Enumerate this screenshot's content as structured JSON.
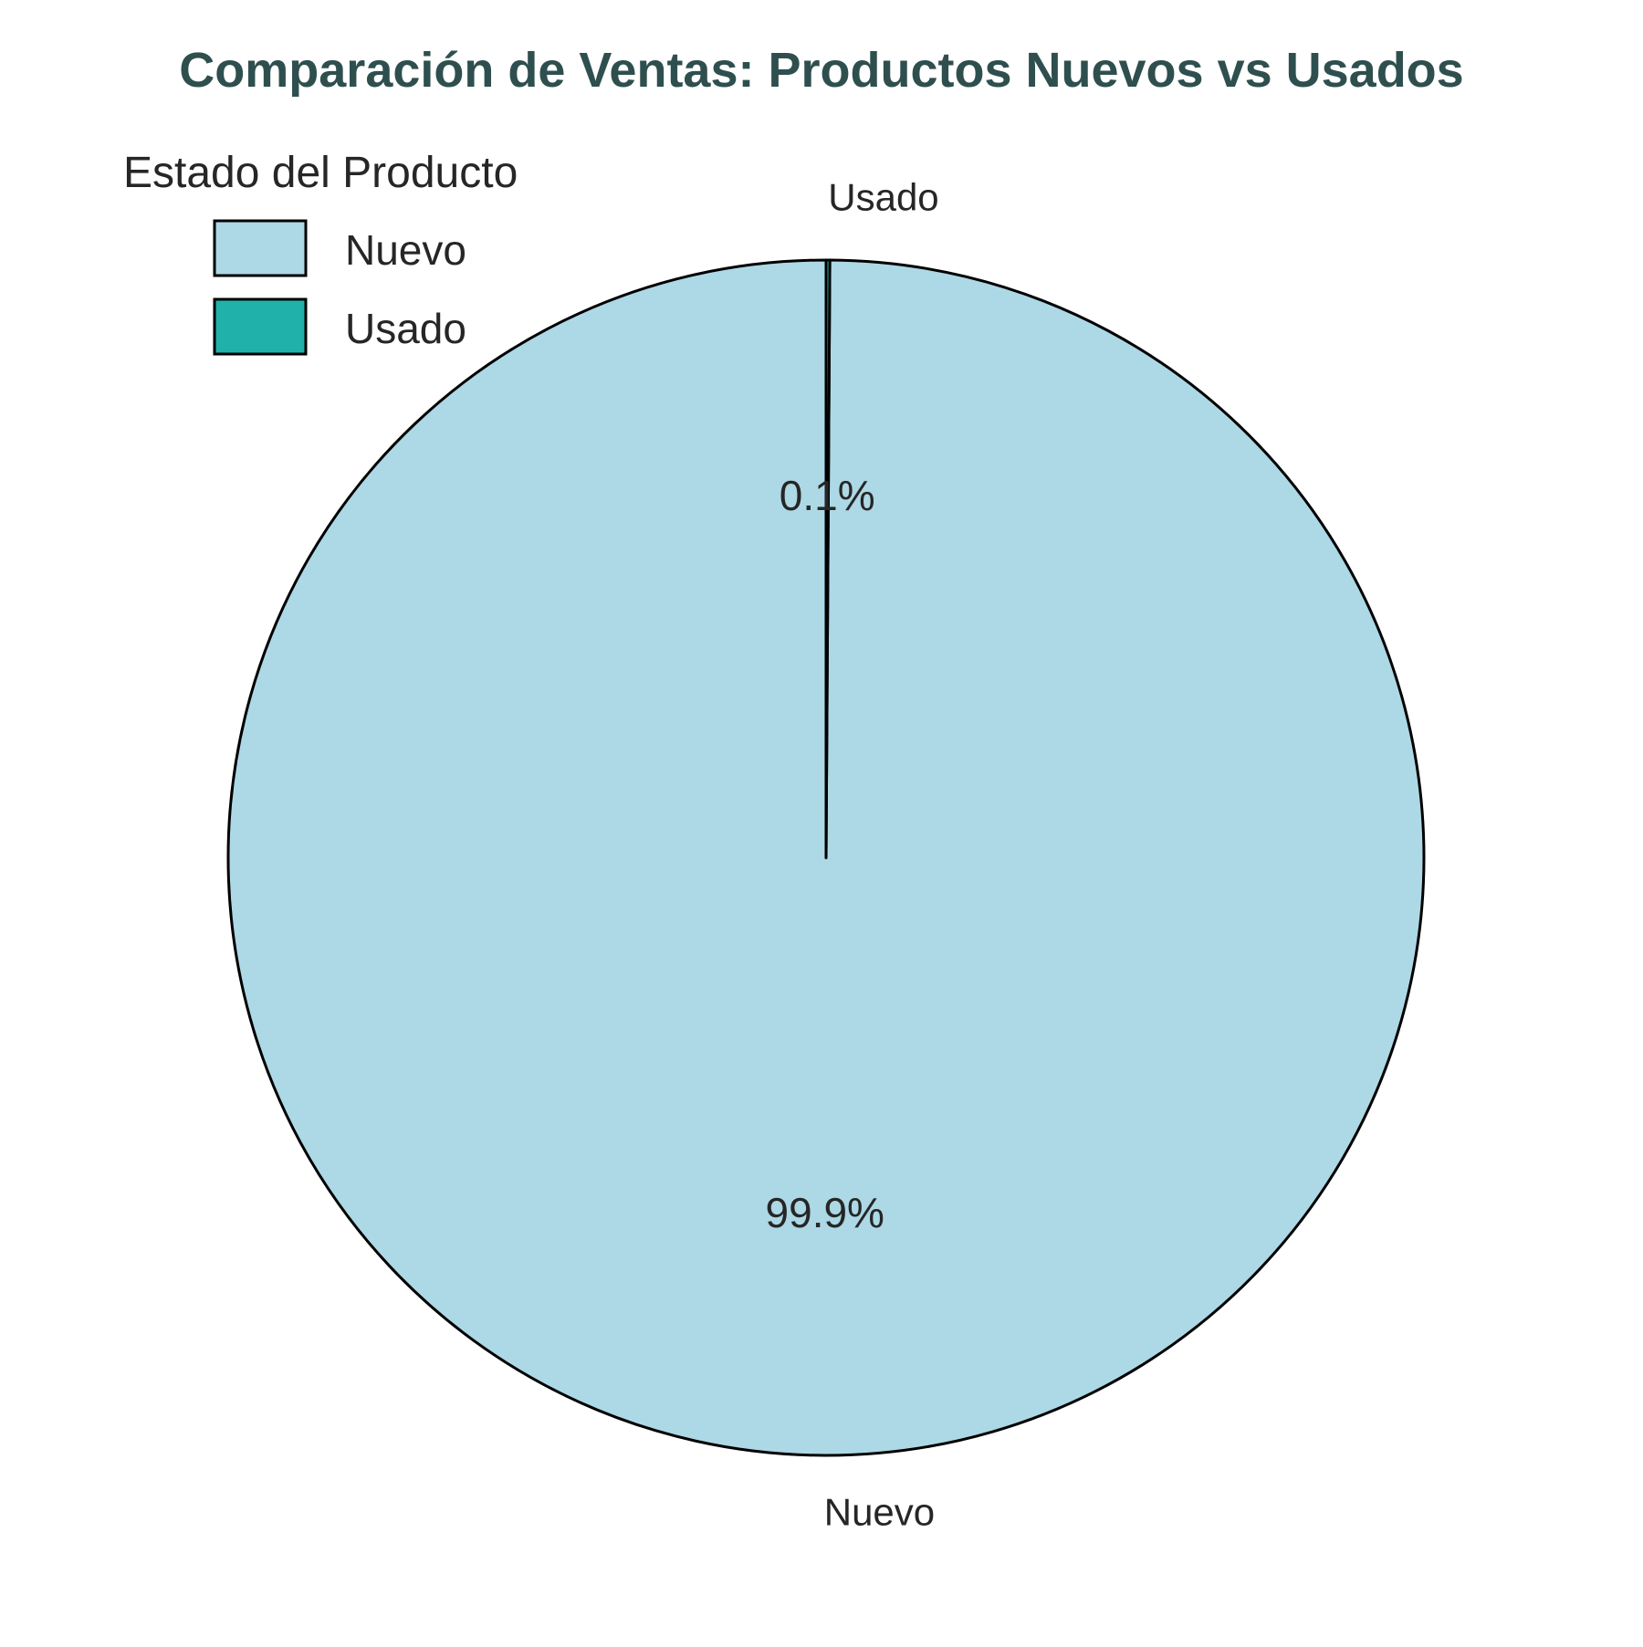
{
  "chart_data": {
    "type": "pie",
    "title": "Comparación de Ventas: Productos Nuevos vs Usados",
    "categories": [
      "Nuevo",
      "Usado"
    ],
    "values": [
      99.9,
      0.1
    ],
    "percent_labels": [
      "99.9%",
      "0.1%"
    ],
    "colors": [
      "#ADD8E6",
      "#20B2AA"
    ],
    "edge_color": "#000000",
    "title_color": "#2F4F4F",
    "text_color": "#262626",
    "start_angle_deg": 90,
    "direction": "counterclockwise",
    "legend": {
      "title": "Estado del Producto",
      "placement": "top-left",
      "entries": [
        "Nuevo",
        "Usado"
      ]
    }
  }
}
